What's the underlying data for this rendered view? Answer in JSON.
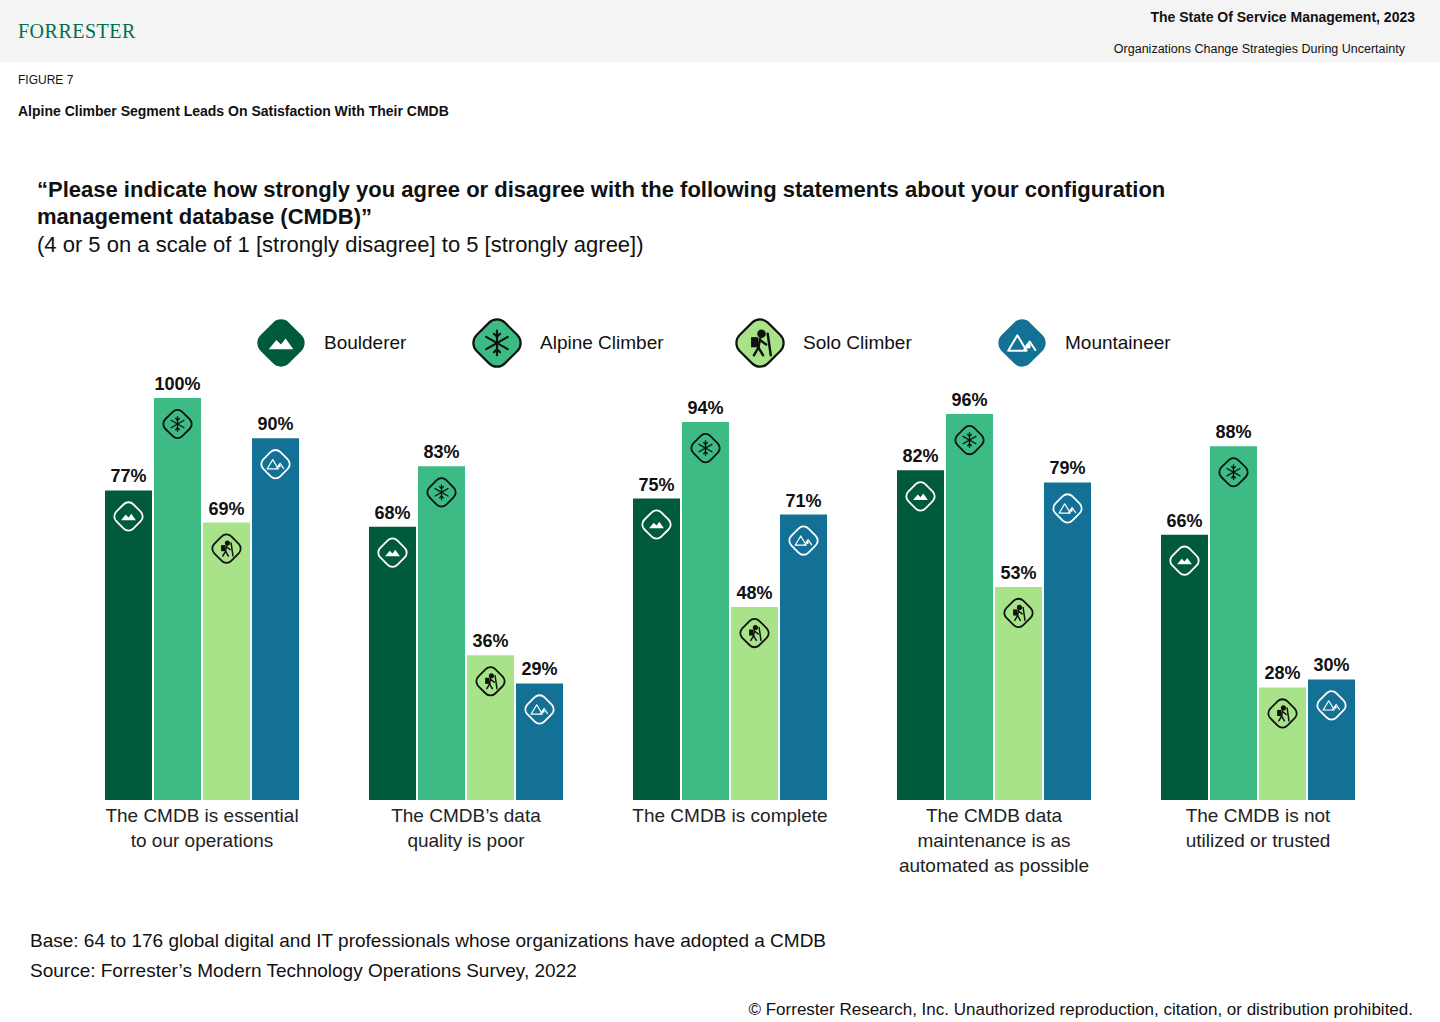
{
  "header": {
    "brand": "FORRESTER",
    "report_title": "The State Of Service Management, 2023",
    "report_subtitle": "Organizations Change Strategies During Uncertainty"
  },
  "figure_label": "FIGURE 7",
  "figure_title": "Alpine Climber Segment Leads On Satisfaction With Their CMDB",
  "chart_data": {
    "type": "bar",
    "title": "“Please indicate how strongly you agree or disagree with the following statements about your configuration management database (CMDB)”",
    "subtitle": "(4 or 5 on a scale of 1 [strongly disagree] to 5 [strongly agree])",
    "categories": [
      "The CMDB is essential to our operations",
      "The CMDB’s data quality is poor",
      "The CMDB is complete",
      "The CMDB data maintenance is as automated as possible",
      "The CMDB is not utilized or trusted"
    ],
    "series": [
      {
        "name": "Boulderer",
        "color": "#005a3c",
        "values": [
          77,
          68,
          75,
          82,
          66
        ],
        "value_labels": [
          "77%",
          "68%",
          "75%",
          "82%",
          "66%"
        ]
      },
      {
        "name": "Alpine Climber",
        "color": "#3dbb84",
        "values": [
          100,
          83,
          94,
          96,
          88
        ],
        "value_labels": [
          "100%",
          "83%",
          "94%",
          "96%",
          "88%"
        ]
      },
      {
        "name": "Solo Climber",
        "color": "#a8e38a",
        "values": [
          69,
          36,
          48,
          53,
          28
        ],
        "value_labels": [
          "69%",
          "36%",
          "48%",
          "53%",
          "28%"
        ]
      },
      {
        "name": "Mountaineer",
        "color": "#137196",
        "values": [
          90,
          29,
          71,
          79,
          30
        ],
        "value_labels": [
          "90%",
          "29%",
          "71%",
          "79%",
          "30%"
        ]
      }
    ],
    "ylim": [
      0,
      100
    ],
    "grid": false,
    "legend": "top",
    "data_labels": true,
    "tick_labels": "x"
  },
  "notes": {
    "base": "Base: 64 to 176 global digital and IT professionals whose organizations have adopted a CMDB",
    "source": "Source: Forrester’s Modern Technology Operations Survey, 2022"
  },
  "copyright": "© Forrester Research, Inc. Unauthorized reproduction, citation, or distribution prohibited."
}
